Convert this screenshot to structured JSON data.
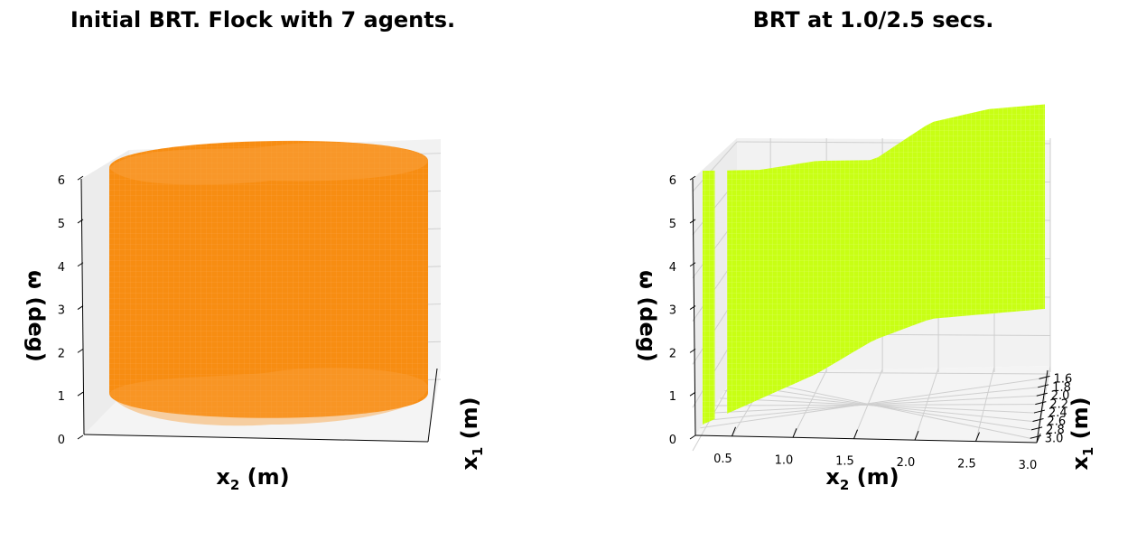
{
  "chart_data": [
    {
      "type": "surface3d",
      "title": "Initial BRT. Flock with 7 agents.",
      "xlabel_main": "x",
      "xlabel_sub": "2",
      "xlabel_unit": " (m)",
      "ylabel_main": "x",
      "ylabel_sub": "1",
      "ylabel_unit": " (m)",
      "zlabel": "ω (deg)",
      "zticks": [
        "0",
        "1",
        "2",
        "3",
        "4",
        "5",
        "6"
      ],
      "xticks": [],
      "yticks": [],
      "zlim": [
        0,
        6.4
      ],
      "surface": {
        "shape": "cylinder",
        "z_min": 0.15,
        "z_max": 6.1
      },
      "color": "#f78d12"
    },
    {
      "type": "surface3d",
      "title": "BRT at 1.0/2.5 secs.",
      "xlabel_main": "x",
      "xlabel_sub": "2",
      "xlabel_unit": " (m)",
      "ylabel_main": "x",
      "ylabel_sub": "1",
      "ylabel_unit": " (m)",
      "zlabel": "ω (deg)",
      "zticks": [
        "0",
        "1",
        "2",
        "3",
        "4",
        "5",
        "6"
      ],
      "xticks": [
        "0.5",
        "1.0",
        "1.5",
        "2.0",
        "2.5",
        "3.0"
      ],
      "yticks": [
        "1.6",
        "1.8",
        "2.0",
        "2.2",
        "2.4",
        "2.6",
        "2.8",
        "3.0"
      ],
      "zlim": [
        0,
        6.4
      ],
      "surface": {
        "shape": "wall",
        "x_range": [
          0.2,
          3.0
        ],
        "gap_x": [
          0.3,
          0.4
        ],
        "top_z": [
          6.2,
          6.0,
          6.0,
          5.8,
          6.5,
          6.6,
          6.5
        ],
        "bottom_z": [
          0.0,
          0.4,
          0.8,
          1.4,
          1.7,
          1.6,
          1.5
        ]
      },
      "color": "#c8ff14"
    }
  ]
}
